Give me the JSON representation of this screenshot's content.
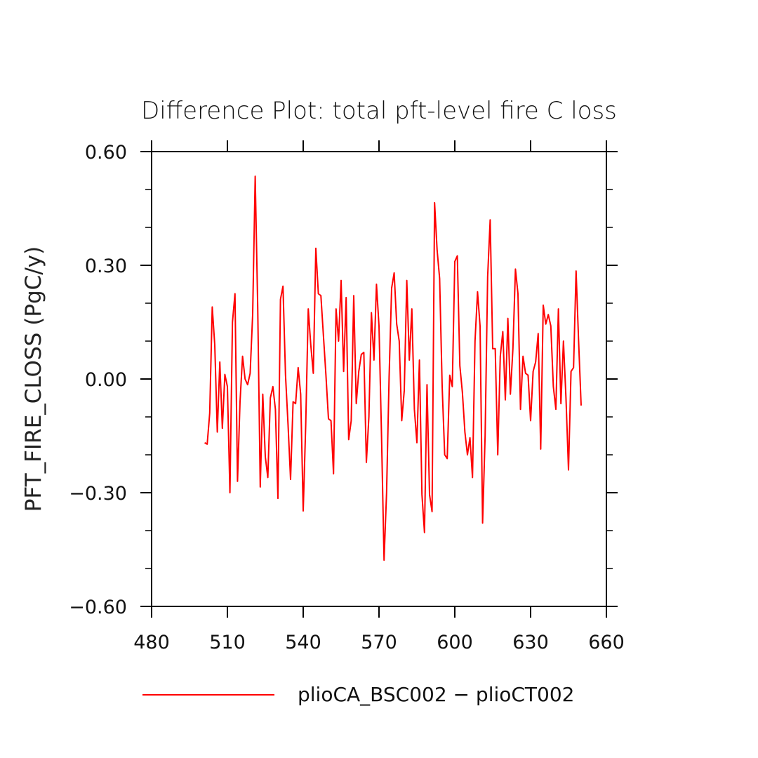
{
  "chart_data": {
    "type": "line",
    "title": "Difference Plot: total pft-level fire C loss",
    "xlabel": "",
    "ylabel": "PFT_FIRE_CLOSS  (PgC/y)",
    "xlim": [
      480,
      660
    ],
    "ylim": [
      -0.6,
      0.6
    ],
    "x_ticks": [
      480,
      510,
      540,
      570,
      600,
      630,
      660
    ],
    "x_tick_labels": [
      "480",
      "510",
      "540",
      "570",
      "600",
      "630",
      "660"
    ],
    "y_ticks": [
      -0.6,
      -0.3,
      0.0,
      0.3,
      0.6
    ],
    "y_tick_labels": [
      "−0.60",
      "−0.30",
      "0.00",
      "0.30",
      "0.60"
    ],
    "grid": false,
    "legend_position": "bottom",
    "series": [
      {
        "name": "plioCA_BSC002 − plioCT002",
        "color": "#ff0000",
        "start_x": 501,
        "step": 1,
        "values": [
          -0.168,
          -0.172,
          -0.09,
          0.19,
          0.09,
          -0.14,
          0.045,
          -0.13,
          0.012,
          -0.02,
          -0.3,
          0.15,
          0.225,
          -0.27,
          -0.06,
          0.06,
          0.0,
          -0.015,
          0.015,
          0.17,
          0.535,
          0.19,
          -0.285,
          -0.04,
          -0.205,
          -0.26,
          -0.05,
          -0.02,
          -0.08,
          -0.315,
          0.21,
          0.245,
          0.01,
          -0.12,
          -0.265,
          -0.06,
          -0.065,
          0.03,
          -0.04,
          -0.348,
          -0.12,
          0.185,
          0.09,
          0.015,
          0.345,
          0.225,
          0.22,
          0.115,
          0.01,
          -0.105,
          -0.11,
          -0.25,
          0.185,
          0.1,
          0.26,
          0.02,
          0.215,
          -0.16,
          -0.11,
          0.22,
          -0.065,
          0.02,
          0.065,
          0.07,
          -0.22,
          -0.1,
          0.175,
          0.05,
          0.25,
          0.14,
          -0.15,
          -0.478,
          -0.3,
          0.005,
          0.24,
          0.28,
          0.145,
          0.1,
          -0.11,
          -0.03,
          0.26,
          0.05,
          0.185,
          -0.08,
          -0.168,
          0.05,
          -0.305,
          -0.405,
          -0.015,
          -0.305,
          -0.35,
          0.465,
          0.34,
          0.265,
          -0.02,
          -0.2,
          -0.21,
          0.01,
          -0.02,
          0.31,
          0.325,
          0.035,
          -0.035,
          -0.14,
          -0.2,
          -0.155,
          -0.26,
          0.1,
          0.23,
          0.14,
          -0.38,
          -0.15,
          0.27,
          0.42,
          0.08,
          0.08,
          -0.2,
          0.06,
          0.125,
          -0.055,
          0.16,
          -0.04,
          0.08,
          0.29,
          0.225,
          -0.08,
          0.06,
          0.015,
          0.01,
          -0.11,
          0.02,
          0.045,
          0.12,
          -0.185,
          0.195,
          0.145,
          0.17,
          0.14,
          -0.02,
          -0.08,
          0.185,
          -0.065,
          0.1,
          -0.05,
          -0.24,
          0.02,
          0.03,
          0.285,
          0.1,
          -0.07
        ]
      }
    ]
  }
}
